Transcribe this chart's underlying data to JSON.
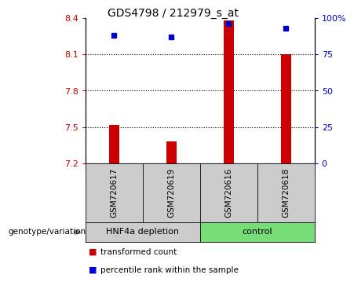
{
  "title": "GDS4798 / 212979_s_at",
  "samples": [
    "GSM720617",
    "GSM720619",
    "GSM720616",
    "GSM720618"
  ],
  "groups": [
    "HNF4a depletion",
    "HNF4a depletion",
    "control",
    "control"
  ],
  "group_colors": {
    "HNF4a depletion": "#cccccc",
    "control": "#77dd77"
  },
  "transformed_counts": [
    7.52,
    7.38,
    8.38,
    8.1
  ],
  "percentile_ranks": [
    88,
    87,
    96,
    93
  ],
  "ylim_left": [
    7.2,
    8.4
  ],
  "ylim_right": [
    0,
    100
  ],
  "left_ticks": [
    7.2,
    7.5,
    7.8,
    8.1,
    8.4
  ],
  "right_ticks": [
    0,
    25,
    50,
    75,
    100
  ],
  "right_tick_labels": [
    "0",
    "25",
    "50",
    "75",
    "100%"
  ],
  "bar_color": "#cc0000",
  "dot_color": "#0000cc",
  "bar_bottom": 7.2,
  "legend_red_label": "transformed count",
  "legend_blue_label": "percentile rank within the sample",
  "genotype_label": "genotype/variation",
  "left_axis_color": "#cc0000",
  "right_axis_color": "#0000cc",
  "grid_linestyle": ":",
  "grid_linewidth": 0.8
}
